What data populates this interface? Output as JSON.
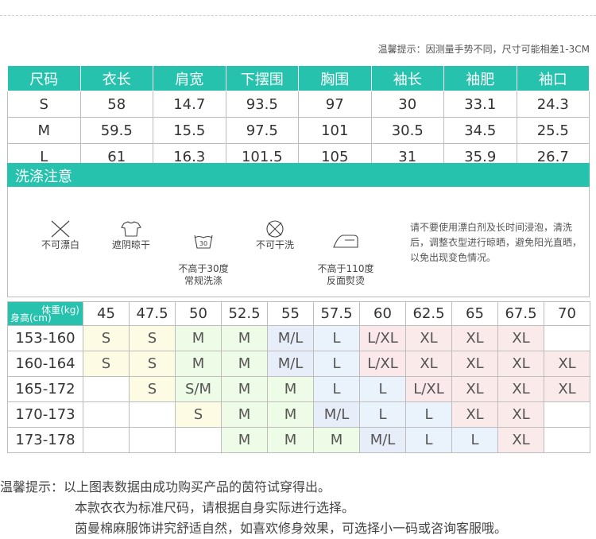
{
  "top_tip": "温馨提示：因测量手势不同，尺寸可能相差1-3CM",
  "size_table": {
    "headers": [
      "尺码",
      "衣长",
      "肩宽",
      "下摆围",
      "胸围",
      "袖长",
      "袖肥",
      "袖口"
    ],
    "rows": [
      [
        "S",
        "58",
        "14.7",
        "93.5",
        "97",
        "30",
        "33.1",
        "24.3"
      ],
      [
        "M",
        "59.5",
        "15.5",
        "97.5",
        "101",
        "30.5",
        "34.5",
        "25.5"
      ],
      [
        "L",
        "61",
        "16.3",
        "101.5",
        "105",
        "31",
        "35.9",
        "26.7"
      ]
    ]
  },
  "care": {
    "title": "洗涤注意",
    "items": [
      {
        "icon": "no-bleach-icon",
        "label": "不可漂白"
      },
      {
        "icon": "shade-dry-icon",
        "label": "遮阴晾干"
      },
      {
        "icon": "wash-30-icon",
        "label": "不高于30度\n常规洗涤",
        "wash_temp": "30"
      },
      {
        "icon": "no-dry-clean-icon",
        "label": "不可干洗"
      },
      {
        "icon": "iron-icon",
        "label": "不高于110度\n反面熨烫"
      }
    ],
    "note": "请不要使用漂白剂及长时间浸泡，清洗后，调整衣型进行晾晒，避免阳光直晒，以免出现变色情况。"
  },
  "weight_height_table": {
    "corner_weight": "体重(kg)",
    "corner_height": "身高(cm)",
    "weights": [
      "45",
      "47.5",
      "50",
      "52.5",
      "55",
      "57.5",
      "60",
      "62.5",
      "65",
      "67.5",
      "70"
    ],
    "rows": [
      {
        "height": "153-160",
        "cells": [
          "S",
          "S",
          "M",
          "M",
          "M/L",
          "L",
          "L/XL",
          "XL",
          "XL",
          "XL",
          ""
        ]
      },
      {
        "height": "160-164",
        "cells": [
          "S",
          "S",
          "M",
          "M",
          "M/L",
          "L",
          "L/XL",
          "XL",
          "XL",
          "XL",
          "XL"
        ]
      },
      {
        "height": "165-172",
        "cells": [
          "",
          "S",
          "S/M",
          "M",
          "M",
          "L",
          "L",
          "L/XL",
          "XL",
          "XL",
          "XL"
        ]
      },
      {
        "height": "170-173",
        "cells": [
          "",
          "",
          "S",
          "M",
          "M",
          "M/L",
          "L",
          "L",
          "XL",
          "XL",
          ""
        ]
      },
      {
        "height": "173-178",
        "cells": [
          "",
          "",
          "",
          "M",
          "M",
          "M",
          "M/L",
          "L",
          "L",
          "XL",
          ""
        ]
      }
    ],
    "colors": {
      "S": "#fdfbe3",
      "M": "#eefbe7",
      "S/M": "#eefbe7",
      "M/L": "#e8edfa",
      "L": "#eaf3fc",
      "L/XL": "#fbe8ea",
      "XL": "#fbeaea"
    }
  },
  "footer": {
    "line1": "温馨提示：以上图表数据由成功购买产品的茵符试穿得出。",
    "line2": "本款衣衣为标准尺码，请根据自身实际进行选择。",
    "line3": "茵曼棉麻服饰讲究舒适自然，如喜欢修身效果，可选择小一码或咨询客服哦。"
  },
  "accent_color": "#26c2ad"
}
